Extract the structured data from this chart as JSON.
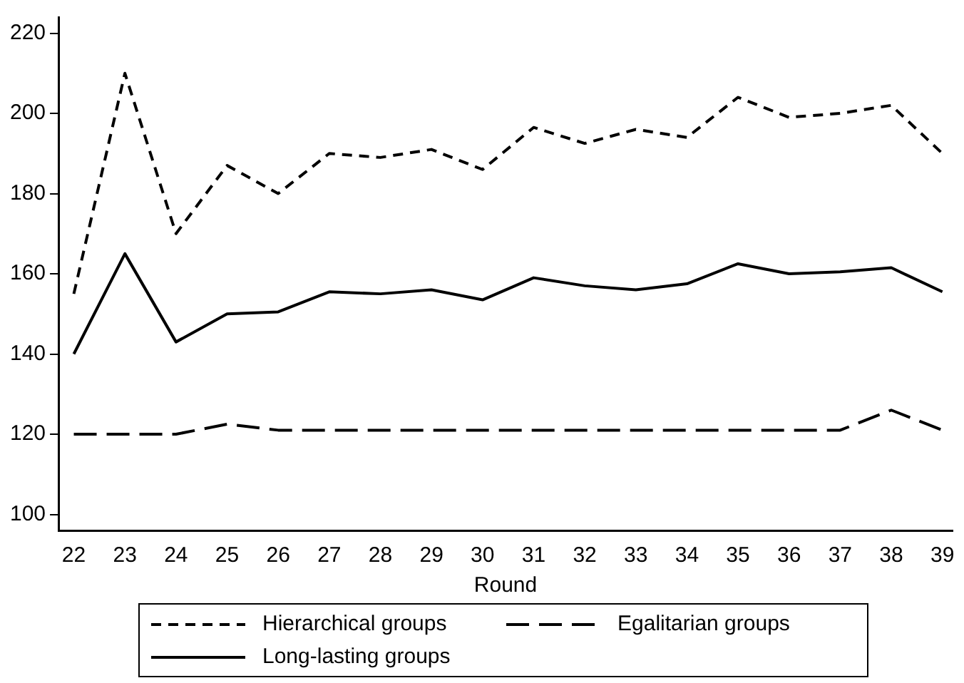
{
  "chart_data": {
    "type": "line",
    "xlabel": "Round",
    "x": [
      22,
      23,
      24,
      25,
      26,
      27,
      28,
      29,
      30,
      31,
      32,
      33,
      34,
      35,
      36,
      37,
      38,
      39
    ],
    "xlim": [
      21.7,
      39.2
    ],
    "xticks": [
      22,
      23,
      24,
      25,
      26,
      27,
      28,
      29,
      30,
      31,
      32,
      33,
      34,
      35,
      36,
      37,
      38,
      39
    ],
    "ylim": [
      96,
      224
    ],
    "yticks": [
      100,
      120,
      140,
      160,
      180,
      200,
      220
    ],
    "grid": false,
    "legend": "bottom",
    "marker": "none",
    "series": [
      {
        "name": "Hierarchical groups",
        "color": "#000000",
        "line_style": "dashed",
        "values": [
          155,
          210,
          170,
          187,
          180,
          190,
          189,
          191,
          186,
          196.5,
          192.5,
          196,
          194,
          204,
          199,
          200,
          202,
          190
        ]
      },
      {
        "name": "Egalitarian groups",
        "color": "#000000",
        "line_style": "dashed",
        "values": [
          120,
          120,
          120,
          122.5,
          121,
          121,
          121,
          121,
          121,
          121,
          121,
          121,
          121,
          121,
          121,
          121,
          126,
          121
        ]
      },
      {
        "name": "Long-lasting groups",
        "color": "#000000",
        "line_style": "solid",
        "values": [
          140,
          165,
          143,
          150,
          150.5,
          155.5,
          155,
          156,
          153.5,
          159,
          157,
          156,
          157.5,
          162.5,
          160,
          160.5,
          161.5,
          155.5
        ]
      }
    ]
  }
}
